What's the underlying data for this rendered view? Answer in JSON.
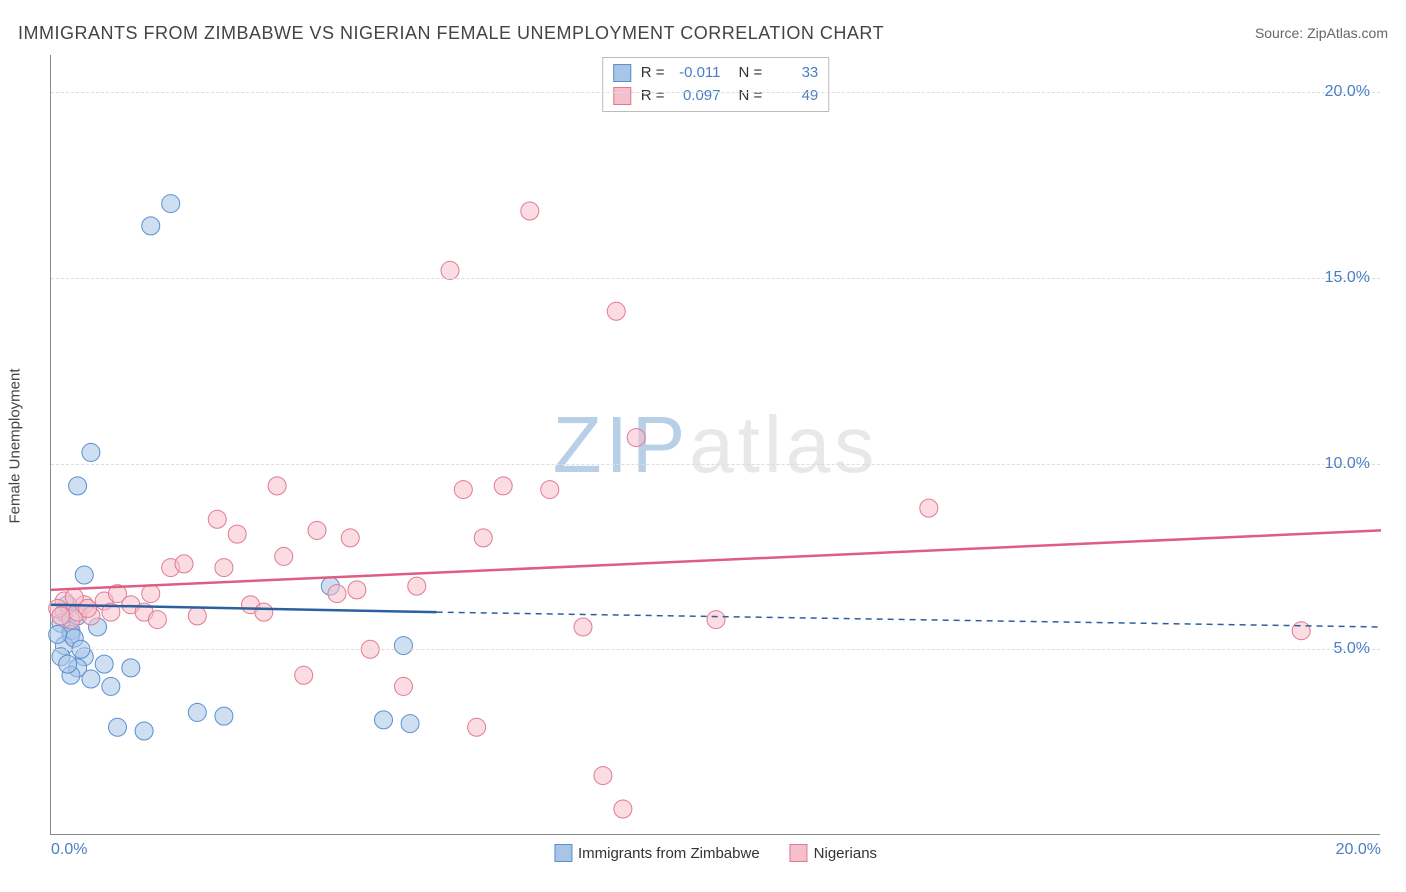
{
  "title": "IMMIGRANTS FROM ZIMBABWE VS NIGERIAN FEMALE UNEMPLOYMENT CORRELATION CHART",
  "source": "Source: ZipAtlas.com",
  "watermark": {
    "zip": "ZIP",
    "rest": "atlas"
  },
  "y_axis_label": "Female Unemployment",
  "xlim": [
    0,
    20
  ],
  "ylim": [
    0,
    21
  ],
  "yticks": [
    5,
    10,
    15,
    20
  ],
  "ytick_labels": [
    "5.0%",
    "10.0%",
    "15.0%",
    "20.0%"
  ],
  "xticks": [
    0,
    20
  ],
  "xtick_labels": [
    "0.0%",
    "20.0%"
  ],
  "grid_color": "#dddddd",
  "axis_color": "#888888",
  "tick_label_color": "#4a7ec4",
  "background_color": "#ffffff",
  "marker_radius": 9,
  "marker_opacity": 0.55,
  "series": [
    {
      "name": "Immigrants from Zimbabwe",
      "color_fill": "#a8c5e8",
      "color_stroke": "#5a8fd0",
      "line_color": "#2d5fa0",
      "R": "-0.011",
      "N": "33",
      "trend": {
        "x1": 0,
        "y1": 6.2,
        "x2": 5.8,
        "y2": 6.0,
        "dash_x2": 20,
        "dash_y2": 5.6
      },
      "points": [
        [
          0.2,
          6.0
        ],
        [
          0.3,
          5.5
        ],
        [
          0.15,
          5.7
        ],
        [
          0.4,
          5.9
        ],
        [
          0.25,
          6.2
        ],
        [
          0.3,
          5.4
        ],
        [
          0.2,
          5.1
        ],
        [
          0.5,
          4.8
        ],
        [
          0.4,
          4.5
        ],
        [
          0.8,
          4.6
        ],
        [
          0.6,
          4.2
        ],
        [
          0.35,
          5.3
        ],
        [
          0.15,
          4.8
        ],
        [
          0.5,
          7.0
        ],
        [
          0.6,
          10.3
        ],
        [
          0.4,
          9.4
        ],
        [
          1.0,
          2.9
        ],
        [
          1.4,
          2.8
        ],
        [
          0.9,
          4.0
        ],
        [
          1.2,
          4.5
        ],
        [
          1.5,
          16.4
        ],
        [
          1.8,
          17.0
        ],
        [
          2.2,
          3.3
        ],
        [
          2.6,
          3.2
        ],
        [
          4.2,
          6.7
        ],
        [
          5.0,
          3.1
        ],
        [
          5.3,
          5.1
        ],
        [
          5.4,
          3.0
        ],
        [
          0.1,
          5.4
        ],
        [
          0.3,
          4.3
        ],
        [
          0.7,
          5.6
        ],
        [
          0.45,
          5.0
        ],
        [
          0.25,
          4.6
        ]
      ]
    },
    {
      "name": "Nigerians",
      "color_fill": "#f5c0cb",
      "color_stroke": "#e07a94",
      "line_color": "#de5d82",
      "R": "0.097",
      "N": "49",
      "trend": {
        "x1": 0,
        "y1": 6.6,
        "x2": 20,
        "y2": 8.2
      },
      "points": [
        [
          0.2,
          6.3
        ],
        [
          0.3,
          5.8
        ],
        [
          0.4,
          6.0
        ],
        [
          0.5,
          6.2
        ],
        [
          0.6,
          5.9
        ],
        [
          0.8,
          6.3
        ],
        [
          1.0,
          6.5
        ],
        [
          1.2,
          6.2
        ],
        [
          1.4,
          6.0
        ],
        [
          1.6,
          5.8
        ],
        [
          1.5,
          6.5
        ],
        [
          1.8,
          7.2
        ],
        [
          2.0,
          7.3
        ],
        [
          2.2,
          5.9
        ],
        [
          2.5,
          8.5
        ],
        [
          2.6,
          7.2
        ],
        [
          3.0,
          6.2
        ],
        [
          3.4,
          9.4
        ],
        [
          3.5,
          7.5
        ],
        [
          3.8,
          4.3
        ],
        [
          4.0,
          8.2
        ],
        [
          4.3,
          6.5
        ],
        [
          4.5,
          8.0
        ],
        [
          4.6,
          6.6
        ],
        [
          4.8,
          5.0
        ],
        [
          5.3,
          4.0
        ],
        [
          5.5,
          6.7
        ],
        [
          6.0,
          15.2
        ],
        [
          6.2,
          9.3
        ],
        [
          6.5,
          8.0
        ],
        [
          6.8,
          9.4
        ],
        [
          7.2,
          16.8
        ],
        [
          7.5,
          9.3
        ],
        [
          8.0,
          5.6
        ],
        [
          8.3,
          1.6
        ],
        [
          8.5,
          14.1
        ],
        [
          8.6,
          0.7
        ],
        [
          8.8,
          10.7
        ],
        [
          10.0,
          5.8
        ],
        [
          13.2,
          8.8
        ],
        [
          18.8,
          5.5
        ],
        [
          0.1,
          6.1
        ],
        [
          0.15,
          5.9
        ],
        [
          0.35,
          6.4
        ],
        [
          0.55,
          6.1
        ],
        [
          0.9,
          6.0
        ],
        [
          2.8,
          8.1
        ],
        [
          3.2,
          6.0
        ],
        [
          6.4,
          2.9
        ]
      ]
    }
  ],
  "legend_bottom": [
    {
      "label": "Immigrants from Zimbabwe",
      "fill": "#a8c5e8",
      "stroke": "#5a8fd0"
    },
    {
      "label": "Nigerians",
      "fill": "#f5c0cb",
      "stroke": "#e07a94"
    }
  ]
}
